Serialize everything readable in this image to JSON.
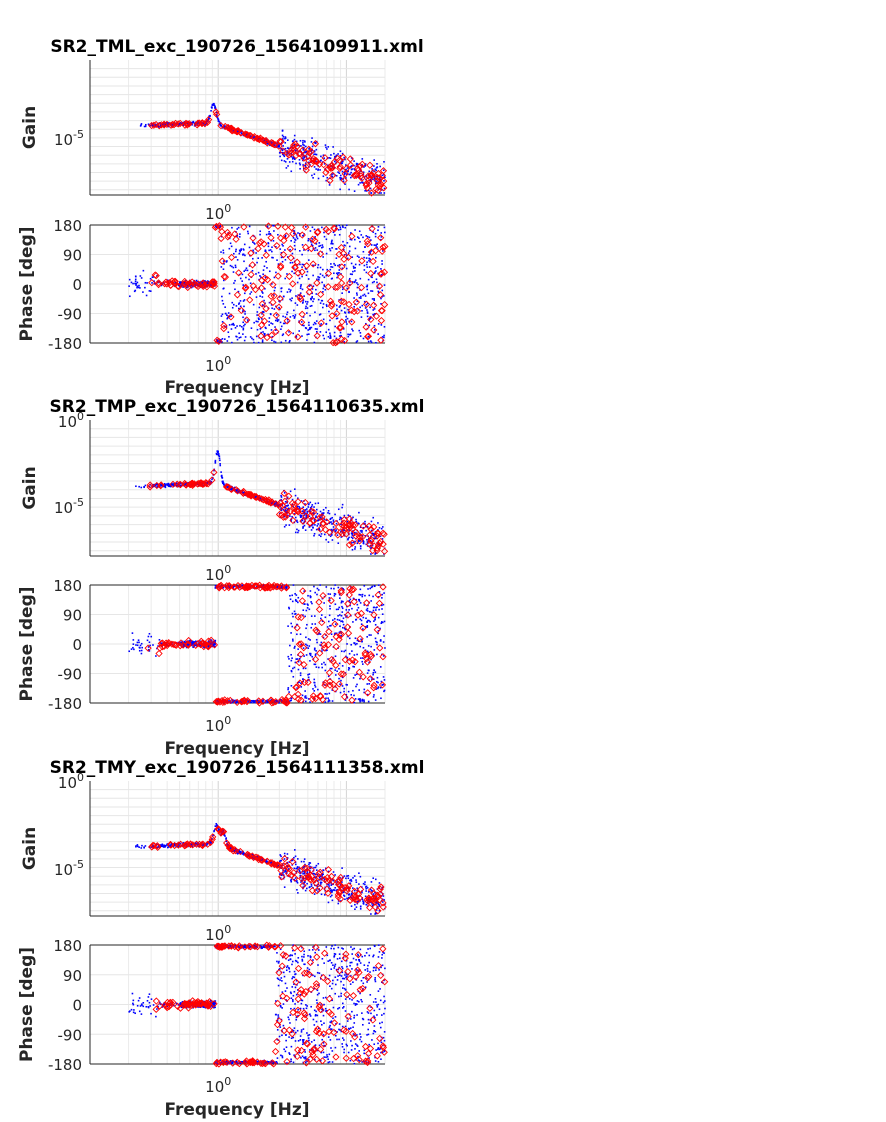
{
  "chart_data": [
    {
      "type": "scatter",
      "title": "SR2_TML_exc_190726_1564109911.xml",
      "gain": {
        "ylabel": "Gain",
        "yscale": "log",
        "ytick_labels": [
          "10-5"
        ],
        "xtick_labels": [
          "10⁰"
        ],
        "grid": true
      },
      "phase": {
        "ylabel": "Phase [deg]",
        "ylim": [
          -180,
          180
        ],
        "ytick_labels": [
          "180",
          "90",
          "0",
          "-90",
          "-180"
        ],
        "xtick_labels": [
          "10⁰"
        ],
        "xlabel": "Frequency [Hz]",
        "grid": true
      },
      "xscale": "log",
      "xlim": [
        0.1,
        20
      ],
      "series": [
        {
          "marker": "dot",
          "color": "#0000ff"
        },
        {
          "marker": "diamond",
          "color": "#ff0000"
        }
      ]
    },
    {
      "type": "scatter",
      "title": "SR2_TMP_exc_190726_1564110635.xml",
      "gain": {
        "ylabel": "Gain",
        "yscale": "log",
        "ytick_labels": [
          "10⁰",
          "10-5"
        ],
        "xtick_labels": [
          "10⁰"
        ],
        "grid": true
      },
      "phase": {
        "ylabel": "Phase [deg]",
        "ylim": [
          -180,
          180
        ],
        "ytick_labels": [
          "180",
          "90",
          "0",
          "-90",
          "-180"
        ],
        "xtick_labels": [
          "10⁰"
        ],
        "xlabel": "Frequency [Hz]",
        "grid": true
      },
      "xscale": "log",
      "xlim": [
        0.1,
        20
      ],
      "series": [
        {
          "marker": "dot",
          "color": "#0000ff"
        },
        {
          "marker": "diamond",
          "color": "#ff0000"
        }
      ]
    },
    {
      "type": "scatter",
      "title": "SR2_TMY_exc_190726_1564111358.xml",
      "gain": {
        "ylabel": "Gain",
        "yscale": "log",
        "ytick_labels": [
          "10⁰",
          "10-5"
        ],
        "xtick_labels": [
          "10⁰"
        ],
        "grid": true
      },
      "phase": {
        "ylabel": "Phase [deg]",
        "ylim": [
          -180,
          180
        ],
        "ytick_labels": [
          "180",
          "90",
          "0",
          "-90",
          "-180"
        ],
        "xtick_labels": [
          "10⁰"
        ],
        "xlabel": "Frequency [Hz]",
        "grid": true
      },
      "xscale": "log",
      "xlim": [
        0.1,
        20
      ],
      "series": [
        {
          "marker": "dot",
          "color": "#0000ff"
        },
        {
          "marker": "diamond",
          "color": "#ff0000"
        }
      ]
    }
  ]
}
